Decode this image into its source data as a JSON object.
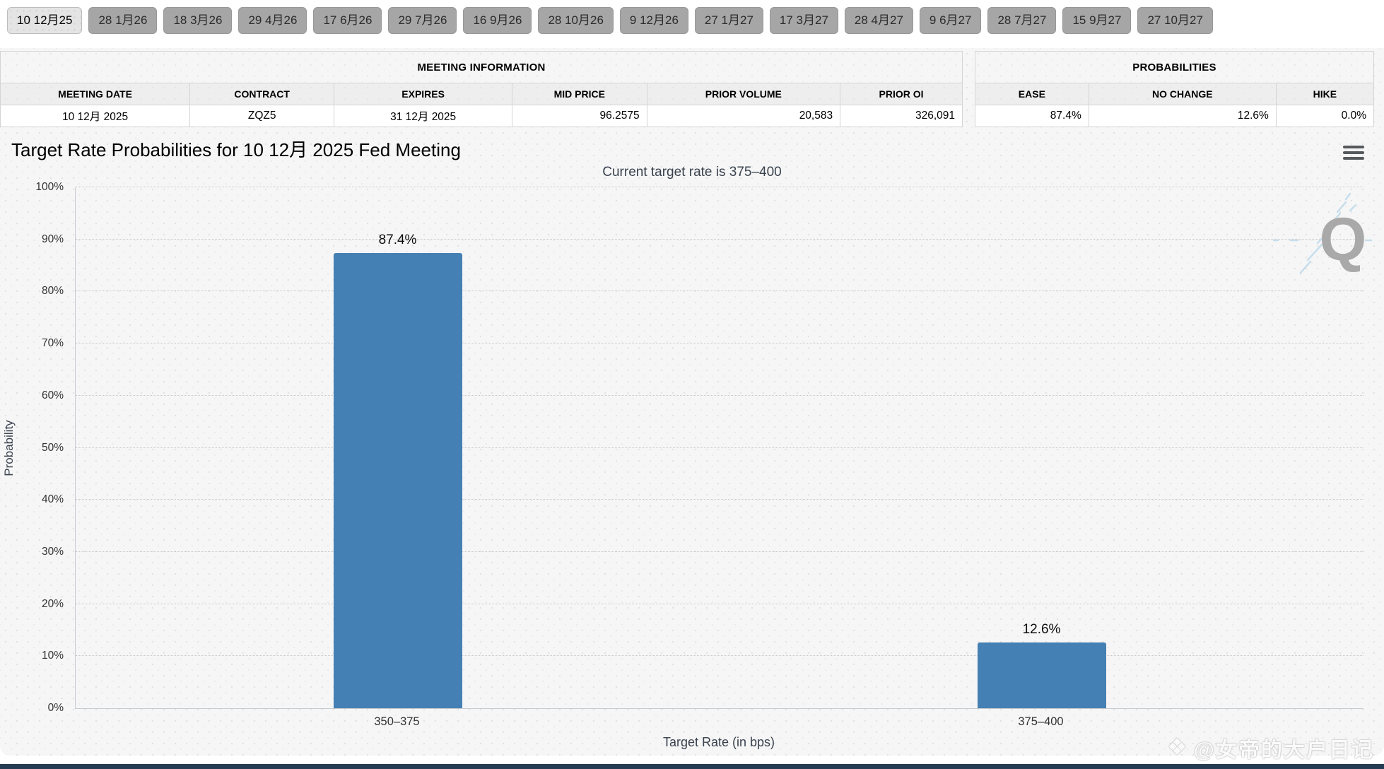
{
  "tabs": {
    "selected_index": 0,
    "items": [
      {
        "label": "10 12月25"
      },
      {
        "label": "28 1月26"
      },
      {
        "label": "18 3月26"
      },
      {
        "label": "29 4月26"
      },
      {
        "label": "17 6月26"
      },
      {
        "label": "29 7月26"
      },
      {
        "label": "16 9月26"
      },
      {
        "label": "28 10月26"
      },
      {
        "label": "9 12月26"
      },
      {
        "label": "27 1月27"
      },
      {
        "label": "17 3月27"
      },
      {
        "label": "28 4月27"
      },
      {
        "label": "9 6月27"
      },
      {
        "label": "28 7月27"
      },
      {
        "label": "15 9月27"
      },
      {
        "label": "27 10月27"
      }
    ]
  },
  "meeting_info": {
    "title": "MEETING INFORMATION",
    "columns": [
      "MEETING DATE",
      "CONTRACT",
      "EXPIRES",
      "MID PRICE",
      "PRIOR VOLUME",
      "PRIOR OI"
    ],
    "col_widths_pct": [
      19.7,
      15.0,
      18.5,
      14.0,
      20.1,
      12.7
    ],
    "row": [
      "10 12月 2025",
      "ZQZ5",
      "31 12月 2025",
      "96.2575",
      "20,583",
      "326,091"
    ]
  },
  "probabilities": {
    "title": "PROBABILITIES",
    "columns": [
      "EASE",
      "NO CHANGE",
      "HIKE"
    ],
    "col_widths_pct": [
      28.5,
      47.0,
      24.5
    ],
    "row": [
      "87.4%",
      "12.6%",
      "0.0%"
    ]
  },
  "chart": {
    "title": "Target Rate Probabilities for 10 12月 2025 Fed Meeting",
    "subtitle": "Current target rate is 375–400",
    "menu_icon": "hamburger-icon"
  },
  "chart_data": {
    "type": "bar",
    "title": "Target Rate Probabilities for 10 12月 2025 Fed Meeting",
    "subtitle": "Current target rate is 375–400",
    "categories": [
      "350–375",
      "375–400"
    ],
    "values": [
      87.4,
      12.6
    ],
    "value_labels": [
      "87.4%",
      "12.6%"
    ],
    "xlabel": "Target Rate (in bps)",
    "ylabel": "Probability",
    "ylim": [
      0,
      100
    ],
    "ytick_step": 10,
    "ytick_suffix": "%",
    "grid": "dotted-horizontal",
    "legend": "none",
    "bar_color": "#4580b4"
  },
  "watermark": {
    "q_letter": "Q",
    "credit": "@女帝的大户日记",
    "credit_icon": "diamond-badge-icon",
    "credit_icon_glyph": "❖"
  },
  "colors": {
    "bar": "#4580b4",
    "panel_bg": "#f6f6f6",
    "tab_bg": "#a6a6a6",
    "tab_selected_bg": "#e4e4e4",
    "bottom_strip": "#263c52",
    "subtitle_text": "#39424e"
  }
}
